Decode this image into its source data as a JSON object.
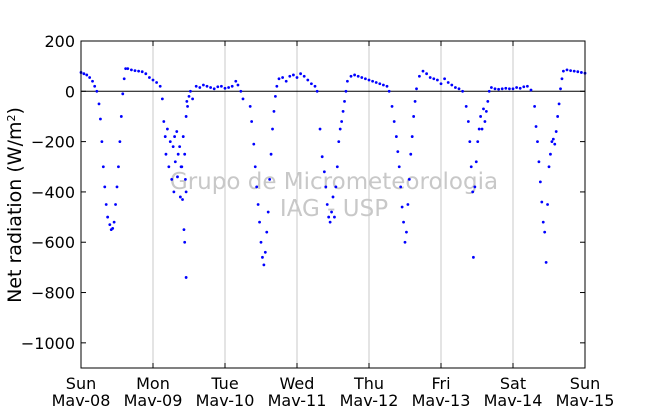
{
  "chart_data": {
    "type": "scatter",
    "title": "",
    "ylabel": {
      "base": "Net radiation (W/m",
      "sup": "2",
      "end": ")"
    },
    "xlabel": "",
    "ylim": [
      -1100,
      200
    ],
    "yticks": [
      {
        "value": 200,
        "label": "200"
      },
      {
        "value": 0,
        "label": "0"
      },
      {
        "value": -200,
        "label": "−200"
      },
      {
        "value": -400,
        "label": "−400"
      },
      {
        "value": -600,
        "label": "−600"
      },
      {
        "value": -800,
        "label": "−800"
      },
      {
        "value": -1000,
        "label": "−1000"
      }
    ],
    "xlim": [
      0,
      7
    ],
    "xticks": [
      {
        "value": 0,
        "day": "Sun",
        "date": "Mav-08"
      },
      {
        "value": 1,
        "day": "Mon",
        "date": "Mav-09"
      },
      {
        "value": 2,
        "day": "Tue",
        "date": "Mav-10"
      },
      {
        "value": 3,
        "day": "Wed",
        "date": "Mav-11"
      },
      {
        "value": 4,
        "day": "Thu",
        "date": "Mav-12"
      },
      {
        "value": 5,
        "day": "Fri",
        "date": "Mav-13"
      },
      {
        "value": 6,
        "day": "Sat",
        "date": "Mav-14"
      },
      {
        "value": 7,
        "day": "Sun",
        "date": "Mav-15"
      }
    ],
    "grid": "vertical",
    "zero_line": true,
    "marker_color": "#0000ff",
    "watermark": [
      "Grupo de Micrometeorologia",
      "IAG - USP"
    ],
    "series": [
      {
        "points": [
          [
            0.0,
            75
          ],
          [
            0.04,
            70
          ],
          [
            0.08,
            65
          ],
          [
            0.12,
            55
          ],
          [
            0.16,
            40
          ],
          [
            0.19,
            20
          ],
          [
            0.22,
            0
          ],
          [
            0.25,
            -50
          ],
          [
            0.27,
            -110
          ],
          [
            0.29,
            -200
          ],
          [
            0.31,
            -300
          ],
          [
            0.33,
            -380
          ],
          [
            0.35,
            -450
          ],
          [
            0.37,
            -500
          ],
          [
            0.4,
            -530
          ],
          [
            0.42,
            -550
          ],
          [
            0.44,
            -545
          ],
          [
            0.46,
            -520
          ],
          [
            0.48,
            -450
          ],
          [
            0.5,
            -380
          ],
          [
            0.52,
            -300
          ],
          [
            0.54,
            -200
          ],
          [
            0.56,
            -100
          ],
          [
            0.58,
            -10
          ],
          [
            0.6,
            50
          ],
          [
            0.62,
            90
          ],
          [
            0.65,
            90
          ],
          [
            0.7,
            85
          ],
          [
            0.75,
            82
          ],
          [
            0.8,
            80
          ],
          [
            0.85,
            78
          ],
          [
            0.9,
            70
          ],
          [
            0.95,
            55
          ],
          [
            1.0,
            45
          ],
          [
            1.05,
            35
          ],
          [
            1.1,
            20
          ],
          [
            1.13,
            -30
          ],
          [
            1.15,
            -120
          ],
          [
            1.17,
            -180
          ],
          [
            1.18,
            -250
          ],
          [
            1.2,
            -150
          ],
          [
            1.22,
            -300
          ],
          [
            1.24,
            -200
          ],
          [
            1.26,
            -350
          ],
          [
            1.28,
            -220
          ],
          [
            1.3,
            -180
          ],
          [
            1.31,
            -280
          ],
          [
            1.33,
            -160
          ],
          [
            1.35,
            -250
          ],
          [
            1.37,
            -220
          ],
          [
            1.38,
            -420
          ],
          [
            1.4,
            -300
          ],
          [
            1.42,
            -180
          ],
          [
            1.44,
            -250
          ],
          [
            1.46,
            -100
          ],
          [
            1.48,
            -60
          ],
          [
            1.5,
            -20
          ],
          [
            1.52,
            0
          ],
          [
            1.55,
            -30
          ],
          [
            1.45,
            -350
          ],
          [
            1.29,
            -400
          ],
          [
            1.34,
            -340
          ],
          [
            1.41,
            -430
          ],
          [
            1.43,
            -550
          ],
          [
            1.47,
            -40
          ],
          [
            1.39,
            -300
          ],
          [
            1.46,
            -400
          ],
          [
            1.44,
            -600
          ],
          [
            1.46,
            -740
          ],
          [
            1.6,
            20
          ],
          [
            1.65,
            15
          ],
          [
            1.7,
            25
          ],
          [
            1.75,
            20
          ],
          [
            1.8,
            15
          ],
          [
            1.85,
            10
          ],
          [
            1.9,
            18
          ],
          [
            1.95,
            20
          ],
          [
            2.0,
            12
          ],
          [
            2.05,
            15
          ],
          [
            2.1,
            20
          ],
          [
            2.15,
            40
          ],
          [
            2.18,
            25
          ],
          [
            2.22,
            0
          ],
          [
            2.25,
            -30
          ],
          [
            2.35,
            -60
          ],
          [
            2.37,
            -120
          ],
          [
            2.4,
            -210
          ],
          [
            2.42,
            -300
          ],
          [
            2.44,
            -380
          ],
          [
            2.46,
            -450
          ],
          [
            2.48,
            -520
          ],
          [
            2.5,
            -600
          ],
          [
            2.52,
            -660
          ],
          [
            2.54,
            -690
          ],
          [
            2.56,
            -640
          ],
          [
            2.58,
            -560
          ],
          [
            2.6,
            -480
          ],
          [
            2.62,
            -350
          ],
          [
            2.64,
            -250
          ],
          [
            2.66,
            -150
          ],
          [
            2.68,
            -80
          ],
          [
            2.7,
            -20
          ],
          [
            2.72,
            20
          ],
          [
            2.75,
            50
          ],
          [
            2.8,
            55
          ],
          [
            2.85,
            40
          ],
          [
            2.9,
            60
          ],
          [
            2.95,
            65
          ],
          [
            3.0,
            55
          ],
          [
            3.05,
            70
          ],
          [
            3.1,
            60
          ],
          [
            3.15,
            45
          ],
          [
            3.2,
            30
          ],
          [
            3.25,
            20
          ],
          [
            3.28,
            0
          ],
          [
            3.32,
            -150
          ],
          [
            3.35,
            -260
          ],
          [
            3.38,
            -320
          ],
          [
            3.4,
            -380
          ],
          [
            3.42,
            -450
          ],
          [
            3.44,
            -500
          ],
          [
            3.46,
            -520
          ],
          [
            3.48,
            -480
          ],
          [
            3.5,
            -420
          ],
          [
            3.52,
            -500
          ],
          [
            3.54,
            -380
          ],
          [
            3.56,
            -300
          ],
          [
            3.58,
            -200
          ],
          [
            3.6,
            -150
          ],
          [
            3.62,
            -120
          ],
          [
            3.64,
            -80
          ],
          [
            3.66,
            -40
          ],
          [
            3.68,
            0
          ],
          [
            3.7,
            40
          ],
          [
            3.75,
            60
          ],
          [
            3.8,
            65
          ],
          [
            3.85,
            60
          ],
          [
            3.9,
            55
          ],
          [
            3.95,
            50
          ],
          [
            4.0,
            45
          ],
          [
            4.05,
            40
          ],
          [
            4.1,
            35
          ],
          [
            4.15,
            30
          ],
          [
            4.2,
            25
          ],
          [
            4.25,
            20
          ],
          [
            4.28,
            0
          ],
          [
            4.32,
            -60
          ],
          [
            4.35,
            -120
          ],
          [
            4.38,
            -180
          ],
          [
            4.4,
            -240
          ],
          [
            4.42,
            -300
          ],
          [
            4.44,
            -380
          ],
          [
            4.46,
            -460
          ],
          [
            4.48,
            -520
          ],
          [
            4.5,
            -600
          ],
          [
            4.52,
            -560
          ],
          [
            4.54,
            -450
          ],
          [
            4.56,
            -350
          ],
          [
            4.58,
            -250
          ],
          [
            4.6,
            -180
          ],
          [
            4.62,
            -100
          ],
          [
            4.64,
            -40
          ],
          [
            4.66,
            10
          ],
          [
            4.7,
            60
          ],
          [
            4.75,
            80
          ],
          [
            4.8,
            70
          ],
          [
            4.85,
            55
          ],
          [
            4.9,
            50
          ],
          [
            4.95,
            45
          ],
          [
            5.0,
            30
          ],
          [
            5.05,
            50
          ],
          [
            5.1,
            35
          ],
          [
            5.15,
            25
          ],
          [
            5.2,
            15
          ],
          [
            5.25,
            10
          ],
          [
            5.3,
            0
          ],
          [
            5.35,
            -60
          ],
          [
            5.38,
            -120
          ],
          [
            5.4,
            -200
          ],
          [
            5.42,
            -300
          ],
          [
            5.44,
            -400
          ],
          [
            5.45,
            -660
          ],
          [
            5.47,
            -380
          ],
          [
            5.49,
            -280
          ],
          [
            5.51,
            -200
          ],
          [
            5.53,
            -150
          ],
          [
            5.55,
            -100
          ],
          [
            5.57,
            -150
          ],
          [
            5.59,
            -70
          ],
          [
            5.61,
            -120
          ],
          [
            5.63,
            -80
          ],
          [
            5.65,
            -40
          ],
          [
            5.67,
            0
          ],
          [
            5.7,
            15
          ],
          [
            5.75,
            10
          ],
          [
            5.8,
            8
          ],
          [
            5.85,
            10
          ],
          [
            5.9,
            12
          ],
          [
            5.95,
            10
          ],
          [
            6.0,
            10
          ],
          [
            6.05,
            15
          ],
          [
            6.1,
            12
          ],
          [
            6.15,
            18
          ],
          [
            6.2,
            20
          ],
          [
            6.25,
            5
          ],
          [
            6.3,
            -60
          ],
          [
            6.32,
            -140
          ],
          [
            6.34,
            -200
          ],
          [
            6.36,
            -280
          ],
          [
            6.38,
            -360
          ],
          [
            6.4,
            -440
          ],
          [
            6.42,
            -520
          ],
          [
            6.44,
            -560
          ],
          [
            6.46,
            -680
          ],
          [
            6.48,
            -450
          ],
          [
            6.5,
            -300
          ],
          [
            6.52,
            -250
          ],
          [
            6.54,
            -200
          ],
          [
            6.56,
            -190
          ],
          [
            6.58,
            -210
          ],
          [
            6.6,
            -160
          ],
          [
            6.62,
            -100
          ],
          [
            6.64,
            -50
          ],
          [
            6.66,
            10
          ],
          [
            6.68,
            50
          ],
          [
            6.7,
            80
          ],
          [
            6.75,
            85
          ],
          [
            6.8,
            82
          ],
          [
            6.85,
            80
          ],
          [
            6.9,
            78
          ],
          [
            6.95,
            75
          ],
          [
            7.0,
            72
          ]
        ]
      }
    ]
  }
}
